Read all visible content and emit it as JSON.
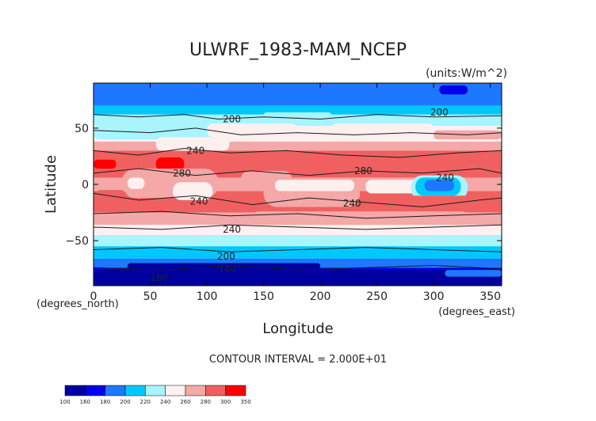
{
  "chart_data": {
    "type": "heatmap",
    "title": "ULWRF_1983-MAM_NCEP",
    "units_label": "(units:W/m^2)",
    "xlabel": "Longitude",
    "ylabel": "Latitude",
    "x_unit_label": "(degrees_east)",
    "y_unit_label": "(degrees_north)",
    "xlim": [
      0,
      360
    ],
    "ylim": [
      -90,
      90
    ],
    "x_ticks": [
      0,
      50,
      100,
      150,
      200,
      250,
      300,
      350
    ],
    "y_ticks": [
      -50,
      0,
      50
    ],
    "contour_interval_text": "CONTOUR INTERVAL = 2.000E+01",
    "colorbar": {
      "levels": [
        100,
        160,
        180,
        200,
        220,
        240,
        260,
        280,
        300,
        350
      ],
      "colors": [
        "#0000a0",
        "#0000ee",
        "#1e78ff",
        "#00c8ff",
        "#a8f4ff",
        "#fff0f0",
        "#f4a8a8",
        "#f06060",
        "#ff0000"
      ]
    },
    "bands": [
      {
        "lat_top": 90,
        "lat_bottom": 70,
        "color": "#1e78ff"
      },
      {
        "lat_top": 70,
        "lat_bottom": 62,
        "color": "#00c8ff"
      },
      {
        "lat_top": 62,
        "lat_bottom": 52,
        "color": "#a8f4ff"
      },
      {
        "lat_top": 52,
        "lat_bottom": 38,
        "color": "#fff0f0"
      },
      {
        "lat_top": 38,
        "lat_bottom": 30,
        "color": "#f4a8a8"
      },
      {
        "lat_top": 30,
        "lat_bottom": 6,
        "color": "#f06060"
      },
      {
        "lat_top": 6,
        "lat_bottom": -6,
        "color": "#f4a8a8"
      },
      {
        "lat_top": -6,
        "lat_bottom": -25,
        "color": "#f06060"
      },
      {
        "lat_top": -25,
        "lat_bottom": -36,
        "color": "#f4a8a8"
      },
      {
        "lat_top": -36,
        "lat_bottom": -45,
        "color": "#fff0f0"
      },
      {
        "lat_top": -45,
        "lat_bottom": -55,
        "color": "#a8f4ff"
      },
      {
        "lat_top": -55,
        "lat_bottom": -66,
        "color": "#00c8ff"
      },
      {
        "lat_top": -66,
        "lat_bottom": -74,
        "color": "#1e78ff"
      },
      {
        "lat_top": -74,
        "lat_bottom": -90,
        "color": "#0000ee"
      }
    ],
    "patches": [
      {
        "lon": [
          0,
          360
        ],
        "lat": [
          80,
          90
        ],
        "color": "#1e78ff"
      },
      {
        "lon": [
          305,
          330
        ],
        "lat": [
          80,
          88
        ],
        "color": "#0000ee"
      },
      {
        "lon": [
          150,
          210
        ],
        "lat": [
          58,
          64
        ],
        "color": "#a8f4ff"
      },
      {
        "lon": [
          0,
          110
        ],
        "lat": [
          40,
          52
        ],
        "color": "#a8f4ff"
      },
      {
        "lon": [
          100,
          180
        ],
        "lat": [
          42,
          54
        ],
        "color": "#fff0f0"
      },
      {
        "lon": [
          210,
          300
        ],
        "lat": [
          44,
          54
        ],
        "color": "#fff0f0"
      },
      {
        "lon": [
          300,
          360
        ],
        "lat": [
          40,
          48
        ],
        "color": "#f4a8a8"
      },
      {
        "lon": [
          55,
          120
        ],
        "lat": [
          30,
          42
        ],
        "color": "#fff0f0"
      },
      {
        "lon": [
          0,
          60
        ],
        "lat": [
          10,
          28
        ],
        "color": "#f06060"
      },
      {
        "lon": [
          0,
          20
        ],
        "lat": [
          14,
          22
        ],
        "color": "#ff0000"
      },
      {
        "lon": [
          55,
          80
        ],
        "lat": [
          12,
          24
        ],
        "color": "#ff0000"
      },
      {
        "lon": [
          25,
          110
        ],
        "lat": [
          -12,
          14
        ],
        "color": "#f4a8a8"
      },
      {
        "lon": [
          30,
          45
        ],
        "lat": [
          -4,
          6
        ],
        "color": "#fff0f0"
      },
      {
        "lon": [
          70,
          105
        ],
        "lat": [
          -14,
          2
        ],
        "color": "#fff0f0"
      },
      {
        "lon": [
          130,
          175
        ],
        "lat": [
          -4,
          12
        ],
        "color": "#f4a8a8"
      },
      {
        "lon": [
          150,
          235
        ],
        "lat": [
          -20,
          6
        ],
        "color": "#f4a8a8"
      },
      {
        "lon": [
          160,
          230
        ],
        "lat": [
          -6,
          4
        ],
        "color": "#fff0f0"
      },
      {
        "lon": [
          240,
          290
        ],
        "lat": [
          -8,
          4
        ],
        "color": "#fff0f0"
      },
      {
        "lon": [
          280,
          330
        ],
        "lat": [
          -14,
          8
        ],
        "color": "#a8f4ff"
      },
      {
        "lon": [
          284,
          324
        ],
        "lat": [
          -10,
          6
        ],
        "color": "#00c8ff"
      },
      {
        "lon": [
          292,
          318
        ],
        "lat": [
          -6,
          4
        ],
        "color": "#1e78ff"
      },
      {
        "lon": [
          260,
          360
        ],
        "lat": [
          -25,
          -10
        ],
        "color": "#f06060"
      },
      {
        "lon": [
          0,
          30
        ],
        "lat": [
          -20,
          -5
        ],
        "color": "#f06060"
      },
      {
        "lon": [
          140,
          330
        ],
        "lat": [
          -36,
          -24
        ],
        "color": "#f4a8a8"
      },
      {
        "lon": [
          220,
          320
        ],
        "lat": [
          -44,
          -36
        ],
        "color": "#fff0f0"
      },
      {
        "lon": [
          0,
          360
        ],
        "lat": [
          -73,
          -66
        ],
        "color": "#1e78ff"
      },
      {
        "lon": [
          0,
          360
        ],
        "lat": [
          -90,
          -76
        ],
        "color": "#0000a0"
      },
      {
        "lon": [
          30,
          200
        ],
        "lat": [
          -76,
          -70
        ],
        "color": "#0000a0"
      },
      {
        "lon": [
          310,
          360
        ],
        "lat": [
          -82,
          -76
        ],
        "color": "#1e78ff"
      }
    ],
    "contours": [
      {
        "points": [
          [
            0,
            62
          ],
          [
            40,
            60
          ],
          [
            80,
            62
          ],
          [
            110,
            58
          ],
          [
            150,
            60
          ],
          [
            200,
            58
          ],
          [
            250,
            62
          ],
          [
            300,
            60
          ],
          [
            360,
            61
          ]
        ]
      },
      {
        "points": [
          [
            0,
            48
          ],
          [
            50,
            46
          ],
          [
            90,
            50
          ],
          [
            130,
            44
          ],
          [
            180,
            46
          ],
          [
            230,
            44
          ],
          [
            280,
            46
          ],
          [
            330,
            44
          ],
          [
            360,
            46
          ]
        ]
      },
      {
        "points": [
          [
            0,
            30
          ],
          [
            40,
            26
          ],
          [
            80,
            32
          ],
          [
            120,
            28
          ],
          [
            170,
            30
          ],
          [
            220,
            26
          ],
          [
            270,
            24
          ],
          [
            320,
            28
          ],
          [
            360,
            30
          ]
        ]
      },
      {
        "points": [
          [
            0,
            10
          ],
          [
            40,
            14
          ],
          [
            90,
            8
          ],
          [
            140,
            12
          ],
          [
            190,
            8
          ],
          [
            240,
            12
          ],
          [
            290,
            10
          ],
          [
            340,
            14
          ],
          [
            360,
            10
          ]
        ]
      },
      {
        "points": [
          [
            0,
            -8
          ],
          [
            40,
            -14
          ],
          [
            90,
            -10
          ],
          [
            140,
            -18
          ],
          [
            190,
            -12
          ],
          [
            240,
            -16
          ],
          [
            290,
            -20
          ],
          [
            340,
            -14
          ],
          [
            360,
            -12
          ]
        ]
      },
      {
        "points": [
          [
            0,
            -26
          ],
          [
            60,
            -24
          ],
          [
            120,
            -28
          ],
          [
            180,
            -26
          ],
          [
            240,
            -30
          ],
          [
            300,
            -28
          ],
          [
            360,
            -26
          ]
        ]
      },
      {
        "points": [
          [
            0,
            -38
          ],
          [
            60,
            -40
          ],
          [
            120,
            -36
          ],
          [
            180,
            -38
          ],
          [
            240,
            -40
          ],
          [
            300,
            -38
          ],
          [
            360,
            -36
          ]
        ]
      },
      {
        "points": [
          [
            0,
            -58
          ],
          [
            60,
            -56
          ],
          [
            120,
            -60
          ],
          [
            180,
            -58
          ],
          [
            240,
            -56
          ],
          [
            300,
            -58
          ],
          [
            360,
            -60
          ]
        ]
      },
      {
        "points": [
          [
            0,
            -74
          ],
          [
            60,
            -76
          ],
          [
            120,
            -72
          ],
          [
            180,
            -76
          ],
          [
            240,
            -74
          ],
          [
            300,
            -72
          ],
          [
            360,
            -75
          ]
        ]
      }
    ],
    "contour_labels": [
      {
        "text": "200",
        "lon": 122,
        "lat": 58
      },
      {
        "text": "200",
        "lon": 305,
        "lat": 64
      },
      {
        "text": "240",
        "lon": 90,
        "lat": 30
      },
      {
        "text": "280",
        "lon": 78,
        "lat": 10
      },
      {
        "text": "280",
        "lon": 238,
        "lat": 12
      },
      {
        "text": "240",
        "lon": 310,
        "lat": 6
      },
      {
        "text": "240",
        "lon": 93,
        "lat": -15
      },
      {
        "text": "240",
        "lon": 228,
        "lat": -17
      },
      {
        "text": "240",
        "lon": 122,
        "lat": -40
      },
      {
        "text": "200",
        "lon": 117,
        "lat": -64
      },
      {
        "text": "180",
        "lon": 118,
        "lat": -75
      },
      {
        "text": "160",
        "lon": 58,
        "lat": -83
      }
    ]
  }
}
